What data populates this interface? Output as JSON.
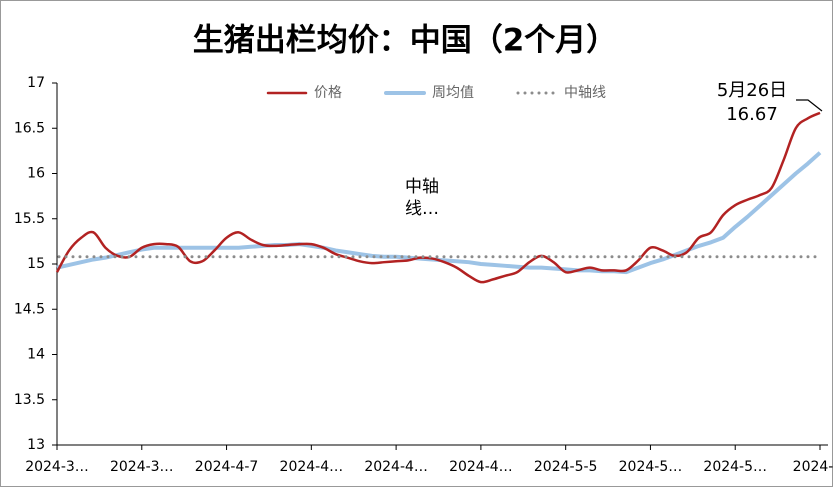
{
  "chart_data": {
    "type": "line",
    "title": "生猪出栏均价：中国（2个月）",
    "categories": [
      "2024-3…",
      null,
      null,
      null,
      null,
      null,
      null,
      "2024-3…",
      null,
      null,
      null,
      null,
      null,
      null,
      "2024-4-7",
      null,
      null,
      null,
      null,
      null,
      null,
      "2024-4…",
      null,
      null,
      null,
      null,
      null,
      null,
      "2024-4…",
      null,
      null,
      null,
      null,
      null,
      null,
      "2024-4…",
      null,
      null,
      null,
      null,
      null,
      null,
      "2024-5-5",
      null,
      null,
      null,
      null,
      null,
      null,
      "2024-5…",
      null,
      null,
      null,
      null,
      null,
      null,
      "2024-5…",
      null,
      null,
      null,
      null,
      null,
      null,
      "2024-…"
    ],
    "series": [
      {
        "name": "价格",
        "color": "#b22222",
        "smooth": true,
        "values": [
          14.91,
          15.15,
          15.29,
          15.35,
          15.18,
          15.09,
          15.08,
          15.18,
          15.22,
          15.22,
          15.19,
          15.03,
          15.03,
          15.15,
          15.29,
          15.35,
          15.27,
          15.21,
          15.2,
          15.21,
          15.22,
          15.22,
          15.18,
          15.11,
          15.07,
          15.03,
          15.01,
          15.02,
          15.03,
          15.04,
          15.07,
          15.06,
          15.02,
          14.96,
          14.87,
          14.8,
          14.83,
          14.87,
          14.91,
          15.02,
          15.09,
          15.02,
          14.91,
          14.93,
          14.96,
          14.93,
          14.93,
          14.93,
          15.04,
          15.18,
          15.15,
          15.09,
          15.13,
          15.29,
          15.35,
          15.54,
          15.65,
          15.71,
          15.76,
          15.84,
          16.15,
          16.5,
          16.61,
          16.67
        ]
      },
      {
        "name": "周均值",
        "color": "#9dc3e6",
        "smooth": false,
        "values": [
          14.96,
          14.99,
          15.02,
          15.05,
          15.07,
          15.1,
          15.13,
          15.16,
          15.18,
          15.18,
          15.18,
          15.18,
          15.18,
          15.18,
          15.18,
          15.18,
          15.19,
          15.2,
          15.21,
          15.21,
          15.22,
          15.2,
          15.18,
          15.15,
          15.13,
          15.11,
          15.09,
          15.08,
          15.08,
          15.07,
          15.06,
          15.05,
          15.04,
          15.03,
          15.02,
          15.0,
          14.99,
          14.98,
          14.97,
          14.96,
          14.96,
          14.95,
          14.94,
          14.93,
          14.93,
          14.92,
          14.92,
          14.91,
          14.96,
          15.01,
          15.05,
          15.1,
          15.15,
          15.2,
          15.24,
          15.29,
          15.41,
          15.52,
          15.64,
          15.76,
          15.88,
          16.0,
          16.11,
          16.23
        ]
      },
      {
        "name": "中轴线",
        "color": "#8c8c8c",
        "dotted": true,
        "value": 15.08
      }
    ],
    "ylim": [
      13,
      17
    ],
    "yticks": [
      13,
      13.5,
      14,
      14.5,
      15,
      15.5,
      16,
      16.5,
      17
    ],
    "legend": "top",
    "annotations": [
      {
        "lines": [
          "5月26日",
          "16.67"
        ]
      },
      {
        "lines": [
          "中轴",
          "线…"
        ]
      }
    ]
  }
}
